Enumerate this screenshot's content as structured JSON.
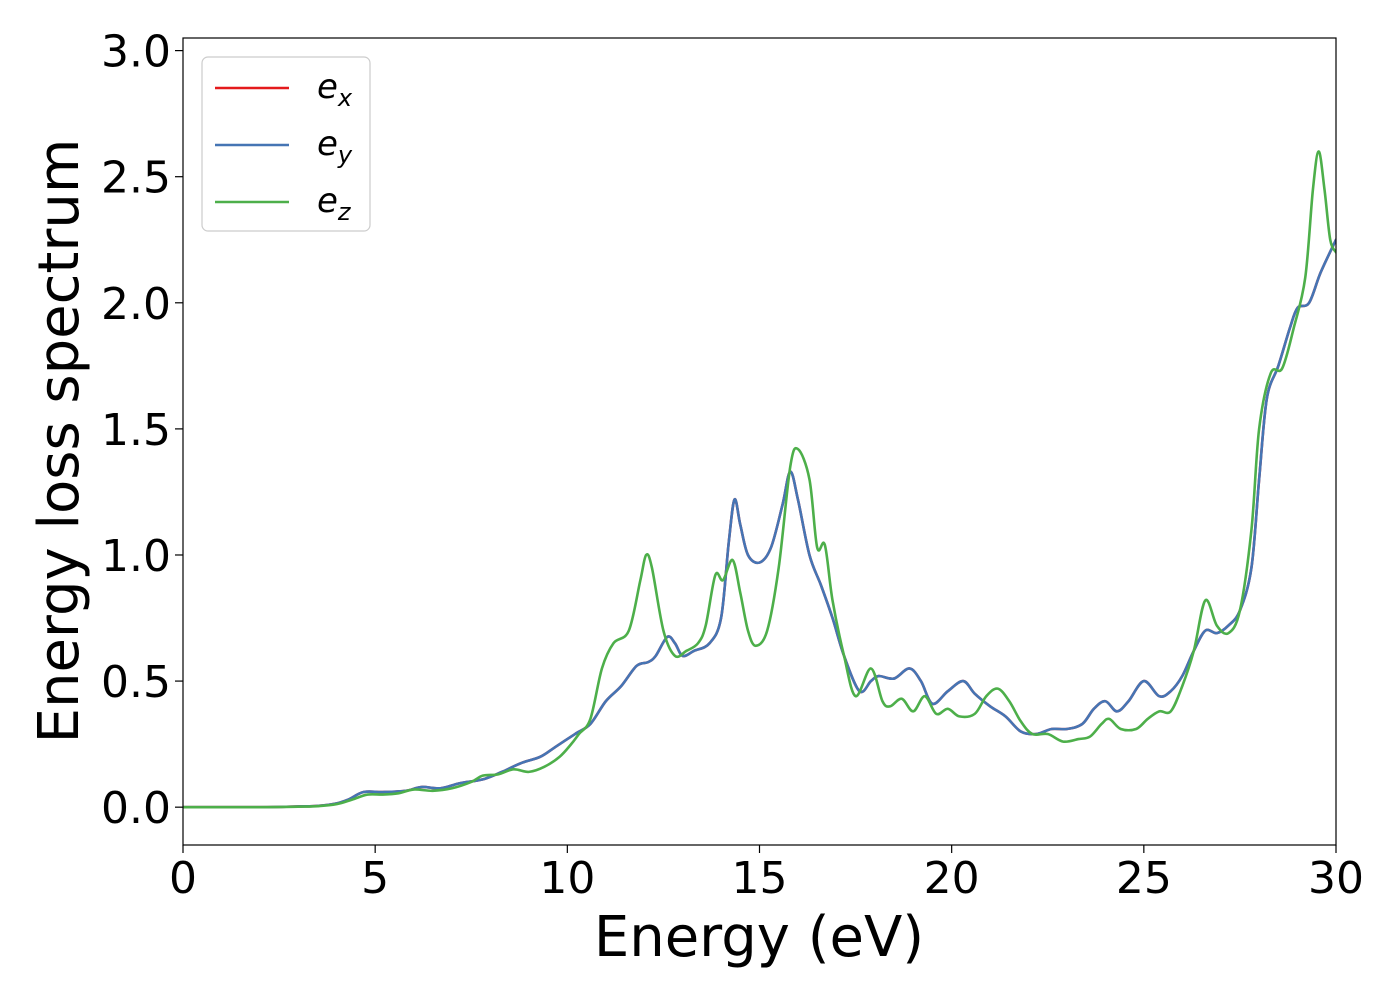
{
  "chart_data": {
    "type": "line",
    "xlabel": "Energy (eV)",
    "ylabel": "Energy loss spectrum",
    "xlim": [
      0,
      30
    ],
    "ylim": [
      -0.15,
      3.05
    ],
    "xticks": [
      "0",
      "5",
      "10",
      "15",
      "20",
      "25",
      "30"
    ],
    "yticks": [
      "0.0",
      "0.5",
      "1.0",
      "1.5",
      "2.0",
      "2.5",
      "3.0"
    ],
    "legend_position": "top-left",
    "grid": false,
    "series": [
      {
        "name": "e_x",
        "legend_base": "e",
        "legend_sub": "x",
        "color": "#e41a1c",
        "points": [
          [
            0,
            0.0
          ],
          [
            2,
            0.0
          ],
          [
            3,
            0.003
          ],
          [
            3.5,
            0.005
          ],
          [
            4,
            0.015
          ],
          [
            4.3,
            0.03
          ],
          [
            4.7,
            0.06
          ],
          [
            5.2,
            0.06
          ],
          [
            5.8,
            0.065
          ],
          [
            6.2,
            0.08
          ],
          [
            6.7,
            0.075
          ],
          [
            7.2,
            0.095
          ],
          [
            7.8,
            0.11
          ],
          [
            8.3,
            0.14
          ],
          [
            8.8,
            0.175
          ],
          [
            9.3,
            0.2
          ],
          [
            9.7,
            0.24
          ],
          [
            10.2,
            0.29
          ],
          [
            10.6,
            0.33
          ],
          [
            11.0,
            0.42
          ],
          [
            11.4,
            0.48
          ],
          [
            11.8,
            0.56
          ],
          [
            12.1,
            0.575
          ],
          [
            12.3,
            0.6
          ],
          [
            12.6,
            0.675
          ],
          [
            12.8,
            0.65
          ],
          [
            13.0,
            0.6
          ],
          [
            13.3,
            0.62
          ],
          [
            13.7,
            0.65
          ],
          [
            14.0,
            0.75
          ],
          [
            14.2,
            1.05
          ],
          [
            14.35,
            1.22
          ],
          [
            14.5,
            1.12
          ],
          [
            14.7,
            1.0
          ],
          [
            15.0,
            0.97
          ],
          [
            15.3,
            1.03
          ],
          [
            15.6,
            1.2
          ],
          [
            15.8,
            1.33
          ],
          [
            16.0,
            1.22
          ],
          [
            16.3,
            1.0
          ],
          [
            16.6,
            0.88
          ],
          [
            16.9,
            0.75
          ],
          [
            17.2,
            0.6
          ],
          [
            17.6,
            0.46
          ],
          [
            17.9,
            0.5
          ],
          [
            18.1,
            0.52
          ],
          [
            18.5,
            0.51
          ],
          [
            18.9,
            0.55
          ],
          [
            19.2,
            0.5
          ],
          [
            19.5,
            0.41
          ],
          [
            19.9,
            0.46
          ],
          [
            20.3,
            0.5
          ],
          [
            20.6,
            0.45
          ],
          [
            21.0,
            0.4
          ],
          [
            21.4,
            0.36
          ],
          [
            21.8,
            0.3
          ],
          [
            22.2,
            0.29
          ],
          [
            22.6,
            0.31
          ],
          [
            23.0,
            0.31
          ],
          [
            23.4,
            0.33
          ],
          [
            23.7,
            0.39
          ],
          [
            24.0,
            0.42
          ],
          [
            24.3,
            0.38
          ],
          [
            24.6,
            0.42
          ],
          [
            25.0,
            0.5
          ],
          [
            25.4,
            0.44
          ],
          [
            25.7,
            0.46
          ],
          [
            26.0,
            0.52
          ],
          [
            26.3,
            0.62
          ],
          [
            26.6,
            0.7
          ],
          [
            26.9,
            0.69
          ],
          [
            27.2,
            0.72
          ],
          [
            27.5,
            0.78
          ],
          [
            27.8,
            0.95
          ],
          [
            28.0,
            1.3
          ],
          [
            28.2,
            1.62
          ],
          [
            28.5,
            1.75
          ],
          [
            28.8,
            1.9
          ],
          [
            29.0,
            1.98
          ],
          [
            29.3,
            2.0
          ],
          [
            29.6,
            2.12
          ],
          [
            30.0,
            2.25
          ]
        ]
      },
      {
        "name": "e_y",
        "legend_base": "e",
        "legend_sub": "y",
        "color": "#4575b4",
        "points": [
          [
            0,
            0.0
          ],
          [
            2,
            0.0
          ],
          [
            3,
            0.003
          ],
          [
            3.5,
            0.005
          ],
          [
            4,
            0.015
          ],
          [
            4.3,
            0.03
          ],
          [
            4.7,
            0.06
          ],
          [
            5.2,
            0.06
          ],
          [
            5.8,
            0.065
          ],
          [
            6.2,
            0.08
          ],
          [
            6.7,
            0.075
          ],
          [
            7.2,
            0.095
          ],
          [
            7.8,
            0.11
          ],
          [
            8.3,
            0.14
          ],
          [
            8.8,
            0.175
          ],
          [
            9.3,
            0.2
          ],
          [
            9.7,
            0.24
          ],
          [
            10.2,
            0.29
          ],
          [
            10.6,
            0.33
          ],
          [
            11.0,
            0.42
          ],
          [
            11.4,
            0.48
          ],
          [
            11.8,
            0.56
          ],
          [
            12.1,
            0.575
          ],
          [
            12.3,
            0.6
          ],
          [
            12.6,
            0.675
          ],
          [
            12.8,
            0.65
          ],
          [
            13.0,
            0.6
          ],
          [
            13.3,
            0.62
          ],
          [
            13.7,
            0.65
          ],
          [
            14.0,
            0.75
          ],
          [
            14.2,
            1.05
          ],
          [
            14.35,
            1.22
          ],
          [
            14.5,
            1.12
          ],
          [
            14.7,
            1.0
          ],
          [
            15.0,
            0.97
          ],
          [
            15.3,
            1.03
          ],
          [
            15.6,
            1.2
          ],
          [
            15.8,
            1.33
          ],
          [
            16.0,
            1.22
          ],
          [
            16.3,
            1.0
          ],
          [
            16.6,
            0.88
          ],
          [
            16.9,
            0.75
          ],
          [
            17.2,
            0.6
          ],
          [
            17.6,
            0.46
          ],
          [
            17.9,
            0.5
          ],
          [
            18.1,
            0.52
          ],
          [
            18.5,
            0.51
          ],
          [
            18.9,
            0.55
          ],
          [
            19.2,
            0.5
          ],
          [
            19.5,
            0.41
          ],
          [
            19.9,
            0.46
          ],
          [
            20.3,
            0.5
          ],
          [
            20.6,
            0.45
          ],
          [
            21.0,
            0.4
          ],
          [
            21.4,
            0.36
          ],
          [
            21.8,
            0.3
          ],
          [
            22.2,
            0.29
          ],
          [
            22.6,
            0.31
          ],
          [
            23.0,
            0.31
          ],
          [
            23.4,
            0.33
          ],
          [
            23.7,
            0.39
          ],
          [
            24.0,
            0.42
          ],
          [
            24.3,
            0.38
          ],
          [
            24.6,
            0.42
          ],
          [
            25.0,
            0.5
          ],
          [
            25.4,
            0.44
          ],
          [
            25.7,
            0.46
          ],
          [
            26.0,
            0.52
          ],
          [
            26.3,
            0.62
          ],
          [
            26.6,
            0.7
          ],
          [
            26.9,
            0.69
          ],
          [
            27.2,
            0.72
          ],
          [
            27.5,
            0.78
          ],
          [
            27.8,
            0.95
          ],
          [
            28.0,
            1.3
          ],
          [
            28.2,
            1.62
          ],
          [
            28.5,
            1.75
          ],
          [
            28.8,
            1.9
          ],
          [
            29.0,
            1.98
          ],
          [
            29.3,
            2.0
          ],
          [
            29.6,
            2.12
          ],
          [
            30.0,
            2.25
          ]
        ]
      },
      {
        "name": "e_z",
        "legend_base": "e",
        "legend_sub": "z",
        "color": "#4daf4a",
        "points": [
          [
            0,
            0.0
          ],
          [
            2,
            0.0
          ],
          [
            3,
            0.002
          ],
          [
            3.5,
            0.004
          ],
          [
            4,
            0.012
          ],
          [
            4.4,
            0.03
          ],
          [
            4.8,
            0.05
          ],
          [
            5.2,
            0.05
          ],
          [
            5.6,
            0.055
          ],
          [
            6.0,
            0.07
          ],
          [
            6.5,
            0.065
          ],
          [
            7.0,
            0.075
          ],
          [
            7.5,
            0.1
          ],
          [
            7.8,
            0.125
          ],
          [
            8.2,
            0.13
          ],
          [
            8.6,
            0.15
          ],
          [
            9.0,
            0.14
          ],
          [
            9.4,
            0.16
          ],
          [
            9.8,
            0.2
          ],
          [
            10.1,
            0.25
          ],
          [
            10.3,
            0.29
          ],
          [
            10.6,
            0.35
          ],
          [
            10.9,
            0.55
          ],
          [
            11.2,
            0.65
          ],
          [
            11.6,
            0.7
          ],
          [
            11.9,
            0.9
          ],
          [
            12.05,
            1.0
          ],
          [
            12.2,
            0.95
          ],
          [
            12.5,
            0.7
          ],
          [
            12.8,
            0.6
          ],
          [
            13.1,
            0.62
          ],
          [
            13.4,
            0.65
          ],
          [
            13.6,
            0.72
          ],
          [
            13.85,
            0.92
          ],
          [
            14.05,
            0.9
          ],
          [
            14.3,
            0.98
          ],
          [
            14.5,
            0.85
          ],
          [
            14.7,
            0.7
          ],
          [
            14.9,
            0.64
          ],
          [
            15.2,
            0.7
          ],
          [
            15.5,
            0.95
          ],
          [
            15.8,
            1.35
          ],
          [
            16.0,
            1.42
          ],
          [
            16.3,
            1.3
          ],
          [
            16.5,
            1.03
          ],
          [
            16.7,
            1.04
          ],
          [
            16.9,
            0.82
          ],
          [
            17.2,
            0.6
          ],
          [
            17.5,
            0.44
          ],
          [
            17.9,
            0.55
          ],
          [
            18.2,
            0.42
          ],
          [
            18.4,
            0.4
          ],
          [
            18.7,
            0.43
          ],
          [
            19.0,
            0.38
          ],
          [
            19.3,
            0.44
          ],
          [
            19.6,
            0.37
          ],
          [
            19.9,
            0.39
          ],
          [
            20.2,
            0.36
          ],
          [
            20.6,
            0.37
          ],
          [
            20.9,
            0.44
          ],
          [
            21.2,
            0.47
          ],
          [
            21.5,
            0.42
          ],
          [
            21.8,
            0.34
          ],
          [
            22.1,
            0.29
          ],
          [
            22.5,
            0.29
          ],
          [
            22.9,
            0.26
          ],
          [
            23.3,
            0.27
          ],
          [
            23.6,
            0.28
          ],
          [
            23.9,
            0.33
          ],
          [
            24.1,
            0.35
          ],
          [
            24.4,
            0.31
          ],
          [
            24.8,
            0.31
          ],
          [
            25.1,
            0.35
          ],
          [
            25.4,
            0.38
          ],
          [
            25.7,
            0.38
          ],
          [
            26.0,
            0.48
          ],
          [
            26.3,
            0.62
          ],
          [
            26.6,
            0.82
          ],
          [
            26.9,
            0.72
          ],
          [
            27.2,
            0.69
          ],
          [
            27.5,
            0.78
          ],
          [
            27.8,
            1.1
          ],
          [
            28.0,
            1.5
          ],
          [
            28.3,
            1.72
          ],
          [
            28.6,
            1.74
          ],
          [
            28.9,
            1.9
          ],
          [
            29.2,
            2.1
          ],
          [
            29.4,
            2.45
          ],
          [
            29.55,
            2.6
          ],
          [
            29.7,
            2.45
          ],
          [
            29.85,
            2.25
          ],
          [
            30.0,
            2.2
          ]
        ]
      }
    ]
  }
}
